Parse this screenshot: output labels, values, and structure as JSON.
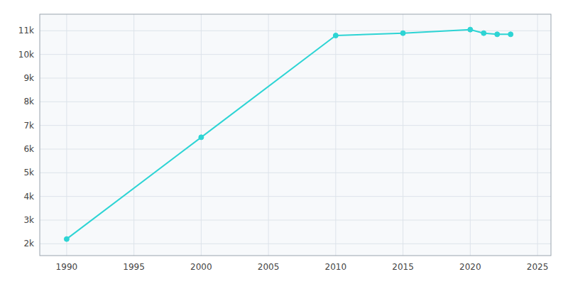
{
  "chart_data": {
    "type": "line",
    "x": [
      1990,
      2000,
      2010,
      2015,
      2020,
      2021,
      2022,
      2023
    ],
    "values": [
      2200,
      6500,
      10800,
      10900,
      11050,
      10900,
      10850,
      10850
    ],
    "color": "#2dd4d4",
    "marker": "circle",
    "xlim": [
      1988,
      2026
    ],
    "ylim": [
      1500,
      11700
    ],
    "xticks": [
      1990,
      1995,
      2000,
      2005,
      2010,
      2015,
      2020,
      2025
    ],
    "yticks": [
      {
        "value": 2000,
        "label": "2k"
      },
      {
        "value": 3000,
        "label": "3k"
      },
      {
        "value": 4000,
        "label": "4k"
      },
      {
        "value": 5000,
        "label": "5k"
      },
      {
        "value": 6000,
        "label": "6k"
      },
      {
        "value": 7000,
        "label": "7k"
      },
      {
        "value": 8000,
        "label": "8k"
      },
      {
        "value": 9000,
        "label": "9k"
      },
      {
        "value": 10000,
        "label": "10k"
      },
      {
        "value": 11000,
        "label": "11k"
      }
    ],
    "grid": true
  }
}
